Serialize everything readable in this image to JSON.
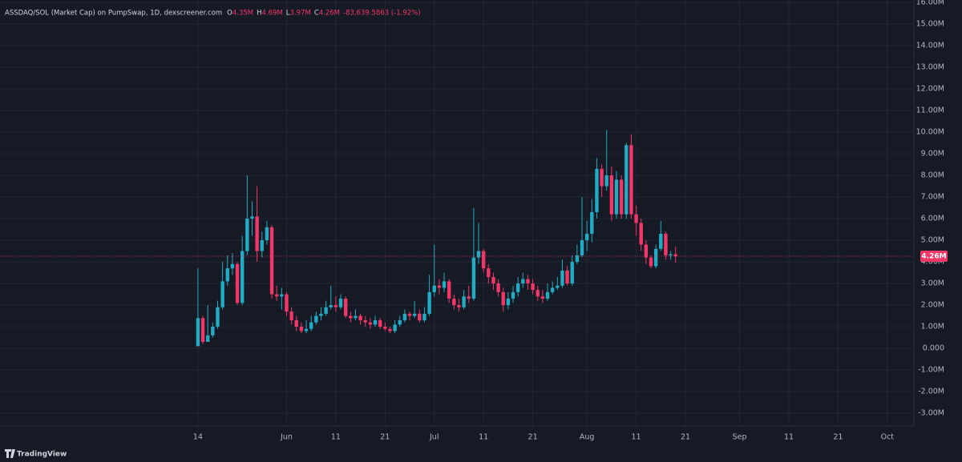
{
  "chart_data": {
    "type": "candlestick",
    "title": "ASSDAQ/SOL (Market Cap) on PumpSwap, 1D, dexscreener.com",
    "ohlc_labels": [
      "O",
      "H",
      "L",
      "C"
    ],
    "ohlc_values": [
      "4.35M",
      "4.69M",
      "3.97M",
      "4.26M"
    ],
    "change": "-83,639.5863 (-1.92%)",
    "last_price_label": "4.26M",
    "watermark": "TradingView",
    "up_color": "#22abc4",
    "down_color": "#f23668",
    "grid": true,
    "xlim": [
      -40.2,
      145.4
    ],
    "xticks": [
      {
        "value": 0,
        "label": "14"
      },
      {
        "value": 18,
        "label": "Jun"
      },
      {
        "value": 28,
        "label": "11"
      },
      {
        "value": 38,
        "label": "21"
      },
      {
        "value": 48,
        "label": "Jul"
      },
      {
        "value": 58,
        "label": "11"
      },
      {
        "value": 68,
        "label": "21"
      },
      {
        "value": 79,
        "label": "Aug"
      },
      {
        "value": 89,
        "label": "11"
      },
      {
        "value": 99,
        "label": "21"
      },
      {
        "value": 110,
        "label": "Sep"
      },
      {
        "value": 120,
        "label": "11"
      },
      {
        "value": 130,
        "label": "21"
      },
      {
        "value": 140,
        "label": "Oct"
      }
    ],
    "ylim": [
      -3.59,
      16.11
    ],
    "yticks": [
      {
        "value": 16,
        "label": "16.00M"
      },
      {
        "value": 15,
        "label": "15.00M"
      },
      {
        "value": 14,
        "label": "14.00M"
      },
      {
        "value": 13,
        "label": "13.00M"
      },
      {
        "value": 12,
        "label": "12.00M"
      },
      {
        "value": 11,
        "label": "11.00M"
      },
      {
        "value": 10,
        "label": "10.00M"
      },
      {
        "value": 9,
        "label": "9.00M"
      },
      {
        "value": 8,
        "label": "8.00M"
      },
      {
        "value": 7,
        "label": "7.00M"
      },
      {
        "value": 6,
        "label": "6.00M"
      },
      {
        "value": 5,
        "label": "5.00M"
      },
      {
        "value": 4,
        "label": "4.00M"
      },
      {
        "value": 3,
        "label": "3.00M"
      },
      {
        "value": 2,
        "label": "2.00M"
      },
      {
        "value": 1,
        "label": "1.00M"
      },
      {
        "value": 0,
        "label": "0.000"
      },
      {
        "value": -1,
        "label": "-1.00M"
      },
      {
        "value": -2,
        "label": "-2.00M"
      },
      {
        "value": -3,
        "label": "-3.00M"
      }
    ],
    "candles": {
      "x": [
        0,
        1,
        2,
        3,
        4,
        5,
        6,
        7,
        8,
        9,
        10,
        11,
        12,
        13,
        14,
        15,
        16,
        17,
        18,
        19,
        20,
        21,
        22,
        23,
        24,
        25,
        26,
        27,
        28,
        29,
        30,
        31,
        32,
        33,
        34,
        35,
        36,
        37,
        38,
        39,
        40,
        41,
        42,
        43,
        44,
        45,
        46,
        47,
        48,
        49,
        50,
        51,
        52,
        53,
        54,
        55,
        56,
        57,
        58,
        59,
        60,
        61,
        62,
        63,
        64,
        65,
        66,
        67,
        68,
        69,
        70,
        71,
        72,
        73,
        74,
        75,
        76,
        77,
        78,
        79,
        80,
        81,
        82,
        83,
        84,
        85,
        86,
        87,
        88,
        89,
        90,
        91,
        92,
        93,
        94,
        95,
        96,
        97
      ],
      "open": [
        0.1,
        1.4,
        0.3,
        0.6,
        1.0,
        1.9,
        3.1,
        3.7,
        3.9,
        2.1,
        4.5,
        6.0,
        6.1,
        4.5,
        5.0,
        5.6,
        2.5,
        2.4,
        2.5,
        1.7,
        1.3,
        1.0,
        0.8,
        0.9,
        1.2,
        1.5,
        1.6,
        1.9,
        2.0,
        1.9,
        2.3,
        1.5,
        1.4,
        1.5,
        1.3,
        1.2,
        1.1,
        1.3,
        1.0,
        0.9,
        0.8,
        1.1,
        1.3,
        1.6,
        1.5,
        1.6,
        1.3,
        1.6,
        2.6,
        2.9,
        2.8,
        3.1,
        2.3,
        2.0,
        1.9,
        2.4,
        2.3,
        4.2,
        4.5,
        3.7,
        3.3,
        3.0,
        2.6,
        2.0,
        2.3,
        2.6,
        3.0,
        3.2,
        3.0,
        2.7,
        2.4,
        2.3,
        2.6,
        2.8,
        2.9,
        3.6,
        3.0,
        4.0,
        4.3,
        5.0,
        5.3,
        6.3,
        8.3,
        7.5,
        8.0,
        6.2,
        7.8,
        6.2,
        9.4,
        6.2,
        5.8,
        4.8,
        4.2,
        3.8,
        4.6,
        5.3,
        4.3,
        4.35
      ],
      "high": [
        3.7,
        1.5,
        2.0,
        1.2,
        2.2,
        4.0,
        4.3,
        4.4,
        4.0,
        5.2,
        8.0,
        6.8,
        7.5,
        5.4,
        5.9,
        5.7,
        2.9,
        2.8,
        2.6,
        1.9,
        1.5,
        1.2,
        1.3,
        1.5,
        1.7,
        1.9,
        2.2,
        2.9,
        2.4,
        2.5,
        2.4,
        1.7,
        1.8,
        1.6,
        1.5,
        1.4,
        1.5,
        1.4,
        1.2,
        1.0,
        1.3,
        1.5,
        1.8,
        1.7,
        2.2,
        1.8,
        1.9,
        3.4,
        4.8,
        3.2,
        3.5,
        3.2,
        2.5,
        2.3,
        2.7,
        2.9,
        6.5,
        5.8,
        4.6,
        3.9,
        3.5,
        3.2,
        2.8,
        2.6,
        2.9,
        3.3,
        3.5,
        3.4,
        3.2,
        2.9,
        2.7,
        3.0,
        3.1,
        3.3,
        4.1,
        3.8,
        4.3,
        4.8,
        7.0,
        5.9,
        6.9,
        8.8,
        8.5,
        10.1,
        8.4,
        8.2,
        8.0,
        9.5,
        9.9,
        6.6,
        6.0,
        5.0,
        4.3,
        4.8,
        5.9,
        5.4,
        4.5,
        4.69
      ],
      "low": [
        0.1,
        0.2,
        0.3,
        0.5,
        0.9,
        1.8,
        2.9,
        3.4,
        2.0,
        2.0,
        4.3,
        5.2,
        4.0,
        4.2,
        4.8,
        2.3,
        2.2,
        1.8,
        1.5,
        1.1,
        0.8,
        0.7,
        0.7,
        0.8,
        1.1,
        1.3,
        1.5,
        1.8,
        1.7,
        1.8,
        1.4,
        1.2,
        1.3,
        1.1,
        1.0,
        0.9,
        1.0,
        0.9,
        0.8,
        0.7,
        0.7,
        1.0,
        1.2,
        1.3,
        1.4,
        1.2,
        1.2,
        1.5,
        2.4,
        2.5,
        2.6,
        2.1,
        1.8,
        1.7,
        1.8,
        2.1,
        2.2,
        3.9,
        3.5,
        3.0,
        2.7,
        2.4,
        1.7,
        1.8,
        2.1,
        2.4,
        2.8,
        2.7,
        2.5,
        2.2,
        2.1,
        2.2,
        2.5,
        2.7,
        2.8,
        2.9,
        2.9,
        3.9,
        4.2,
        4.5,
        4.9,
        6.0,
        7.0,
        7.3,
        5.9,
        6.0,
        6.0,
        6.0,
        6.0,
        5.2,
        4.5,
        3.9,
        3.7,
        3.7,
        4.5,
        4.1,
        4.1,
        3.97
      ],
      "close": [
        1.4,
        0.3,
        0.6,
        1.0,
        1.9,
        3.1,
        3.7,
        3.9,
        2.1,
        4.5,
        6.0,
        6.1,
        4.5,
        5.0,
        5.6,
        2.5,
        2.4,
        2.5,
        1.7,
        1.3,
        1.0,
        0.8,
        0.9,
        1.2,
        1.5,
        1.6,
        1.9,
        2.0,
        1.9,
        2.3,
        1.5,
        1.4,
        1.5,
        1.3,
        1.2,
        1.1,
        1.3,
        1.0,
        0.9,
        0.8,
        1.1,
        1.3,
        1.6,
        1.5,
        1.6,
        1.3,
        1.6,
        2.6,
        2.9,
        2.8,
        3.1,
        2.3,
        2.0,
        1.9,
        2.4,
        2.3,
        4.2,
        4.5,
        3.7,
        3.3,
        3.0,
        2.6,
        2.0,
        2.3,
        2.6,
        3.0,
        3.2,
        3.0,
        2.7,
        2.4,
        2.3,
        2.6,
        2.8,
        2.9,
        3.6,
        3.0,
        4.0,
        4.3,
        5.0,
        5.3,
        6.3,
        8.3,
        7.5,
        8.0,
        6.2,
        7.8,
        6.2,
        9.4,
        6.2,
        5.8,
        4.8,
        4.2,
        3.8,
        4.6,
        5.3,
        4.3,
        4.35,
        4.26
      ]
    }
  }
}
